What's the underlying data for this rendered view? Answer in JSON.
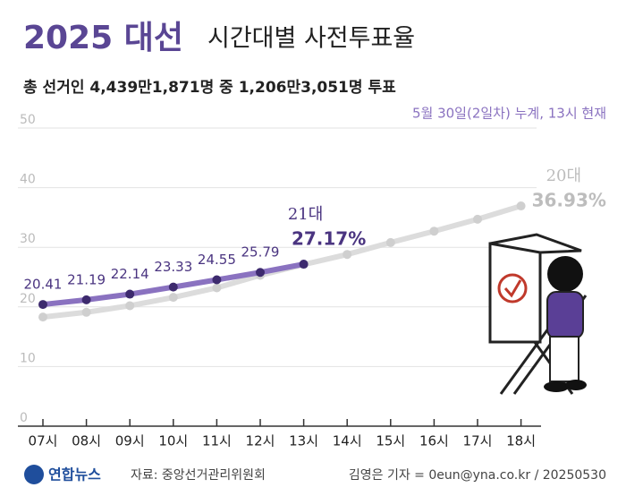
{
  "chart_data": {
    "type": "line",
    "title": "2025 대선",
    "subtitle": "시간대별 사전투표율",
    "summary": "총 선거인 4,439만1,871명 중 1,206만3,051명 투표",
    "note": "5월 30일(2일차) 누계, 13시 현재",
    "source": "자료: 중앙선거관리위원회",
    "credit": "김영은 기자 = 0eun@yna.co.kr / 20250530",
    "logo": "연합뉴스",
    "categories": [
      "07시",
      "08시",
      "09시",
      "10시",
      "11시",
      "12시",
      "13시",
      "14시",
      "15시",
      "16시",
      "17시",
      "18시"
    ],
    "series": [
      {
        "name": "20대",
        "color": "#dcdcdc",
        "marker": "#cfcfcf",
        "label_color": "#bdbdbd",
        "values": [
          18.3,
          19.1,
          20.2,
          21.6,
          23.2,
          25.3,
          27.1,
          28.8,
          30.8,
          32.7,
          34.7,
          36.93
        ],
        "value_labels": [
          null,
          null,
          null,
          null,
          null,
          null,
          null,
          null,
          null,
          null,
          null,
          "36.93%"
        ]
      },
      {
        "name": "21대",
        "color": "#8a72c0",
        "marker": "#3d2a6e",
        "label_color": "#4a3480",
        "values": [
          20.41,
          21.19,
          22.14,
          23.33,
          24.55,
          25.79,
          27.17,
          null,
          null,
          null,
          null,
          null
        ],
        "value_labels": [
          "20.41",
          "21.19",
          "22.14",
          "23.33",
          "24.55",
          "25.79",
          "27.17%",
          null,
          null,
          null,
          null,
          null
        ]
      }
    ],
    "ylim": [
      0,
      50
    ],
    "yticks": [
      0,
      10,
      20,
      30,
      40,
      50
    ],
    "grid": true
  }
}
